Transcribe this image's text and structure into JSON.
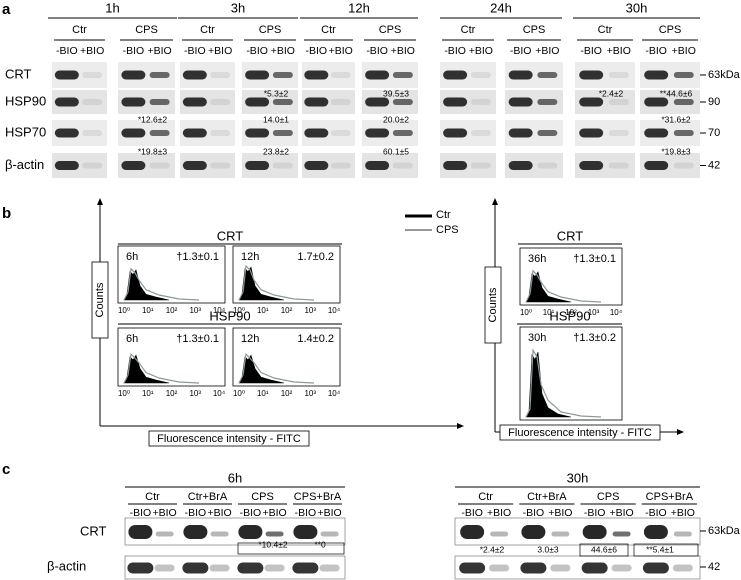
{
  "panel_a": {
    "label": "a",
    "times": [
      "1h",
      "3h",
      "12h",
      "24h",
      "30h"
    ],
    "groups": [
      "Ctr",
      "CPS"
    ],
    "lanes": [
      "-BIO",
      "+BIO"
    ],
    "rows": [
      {
        "name": "CRT",
        "marker": "63kDa",
        "quant": [
          "*5.3±2",
          "39.5±3",
          "*2.4±2",
          "**44.6±6"
        ]
      },
      {
        "name": "HSP90",
        "marker": "90",
        "quant": [
          "*12.6±2",
          "14.0±1",
          "20.0±2",
          "*31.6±2"
        ]
      },
      {
        "name": "HSP70",
        "marker": "70",
        "quant": [
          "*19.8±3",
          "23.8±2",
          "60.1±5",
          "*19.8±3"
        ]
      },
      {
        "name": "β-actin",
        "marker": "42",
        "quant": []
      }
    ]
  },
  "panel_b": {
    "label": "b",
    "legend": [
      "Ctr",
      "CPS"
    ],
    "y_label": "Counts",
    "x_label": "Fluorescence intensity - FITC",
    "x_ticks": [
      "10⁰",
      "10¹",
      "10²",
      "10³",
      "10⁴"
    ],
    "plots": [
      {
        "title": "CRT",
        "panels": [
          {
            "time": "6h",
            "ratio": "†1.3±0.1"
          },
          {
            "time": "12h",
            "ratio": "1.7±0.2"
          }
        ]
      },
      {
        "title": "HSP90",
        "panels": [
          {
            "time": "6h",
            "ratio": "†1.3±0.1"
          },
          {
            "time": "12h",
            "ratio": "1.4±0.2"
          }
        ]
      },
      {
        "title": "CRT",
        "panels": [
          {
            "time": "36h",
            "ratio": "†1.3±0.1"
          }
        ]
      },
      {
        "title": "HSP90",
        "panels": [
          {
            "time": "30h",
            "ratio": "†1.3±0.2"
          }
        ]
      }
    ]
  },
  "panel_c": {
    "label": "c",
    "groups": [
      "Ctr",
      "Ctr+BrA",
      "CPS",
      "CPS+BrA"
    ],
    "lanes": [
      "-BIO",
      "+BIO"
    ],
    "rows": [
      "CRT",
      "β-actin"
    ],
    "markers": [
      "63kDa",
      "42"
    ],
    "blots": [
      {
        "time": "6h",
        "quant": [
          "*10.4±2",
          "**0"
        ]
      },
      {
        "time": "30h",
        "quant": [
          "*2.4±2",
          "3.0±3",
          "44.6±6",
          "**5.4±1"
        ]
      }
    ]
  }
}
